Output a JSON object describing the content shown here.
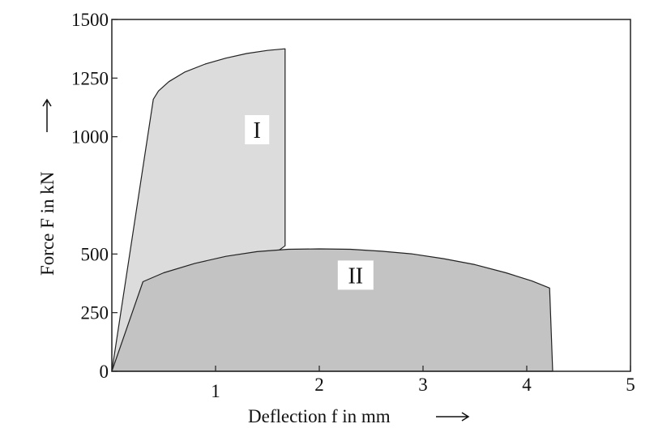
{
  "chart_data": {
    "type": "area",
    "title": "",
    "xlabel": "Deflection f in mm",
    "ylabel": "Force F in kN",
    "xlim": [
      0,
      5
    ],
    "ylim": [
      0,
      1500
    ],
    "x_ticks": [
      {
        "value": 1,
        "label": "1"
      },
      {
        "value": 2,
        "label": "2"
      },
      {
        "value": 3,
        "label": "3"
      },
      {
        "value": 4,
        "label": "4"
      },
      {
        "value": 5,
        "label": "5"
      }
    ],
    "y_ticks": [
      {
        "value": 0,
        "label": "0"
      },
      {
        "value": 250,
        "label": "250"
      },
      {
        "value": 500,
        "label": "500"
      },
      {
        "value": 1000,
        "label": "1000"
      },
      {
        "value": 1250,
        "label": "1250"
      },
      {
        "value": 1500,
        "label": "1500"
      }
    ],
    "grid": false,
    "legend": "none",
    "series": [
      {
        "name": "I",
        "color": "#dcdcdc",
        "x": [
          0,
          0.4,
          0.45,
          0.55,
          0.7,
          0.9,
          1.1,
          1.3,
          1.5,
          1.67,
          1.67
        ],
        "y": [
          0,
          1160,
          1195,
          1235,
          1275,
          1310,
          1335,
          1355,
          1368,
          1375,
          535
        ]
      },
      {
        "name": "II",
        "color": "#c3c3c3",
        "x": [
          0,
          0.3,
          0.5,
          0.8,
          1.1,
          1.4,
          1.7,
          2.0,
          2.3,
          2.6,
          2.9,
          3.2,
          3.5,
          3.8,
          4.05,
          4.22,
          4.25
        ],
        "y": [
          0,
          382,
          420,
          460,
          490,
          510,
          520,
          522,
          520,
          512,
          500,
          480,
          455,
          420,
          385,
          355,
          0
        ]
      }
    ]
  }
}
